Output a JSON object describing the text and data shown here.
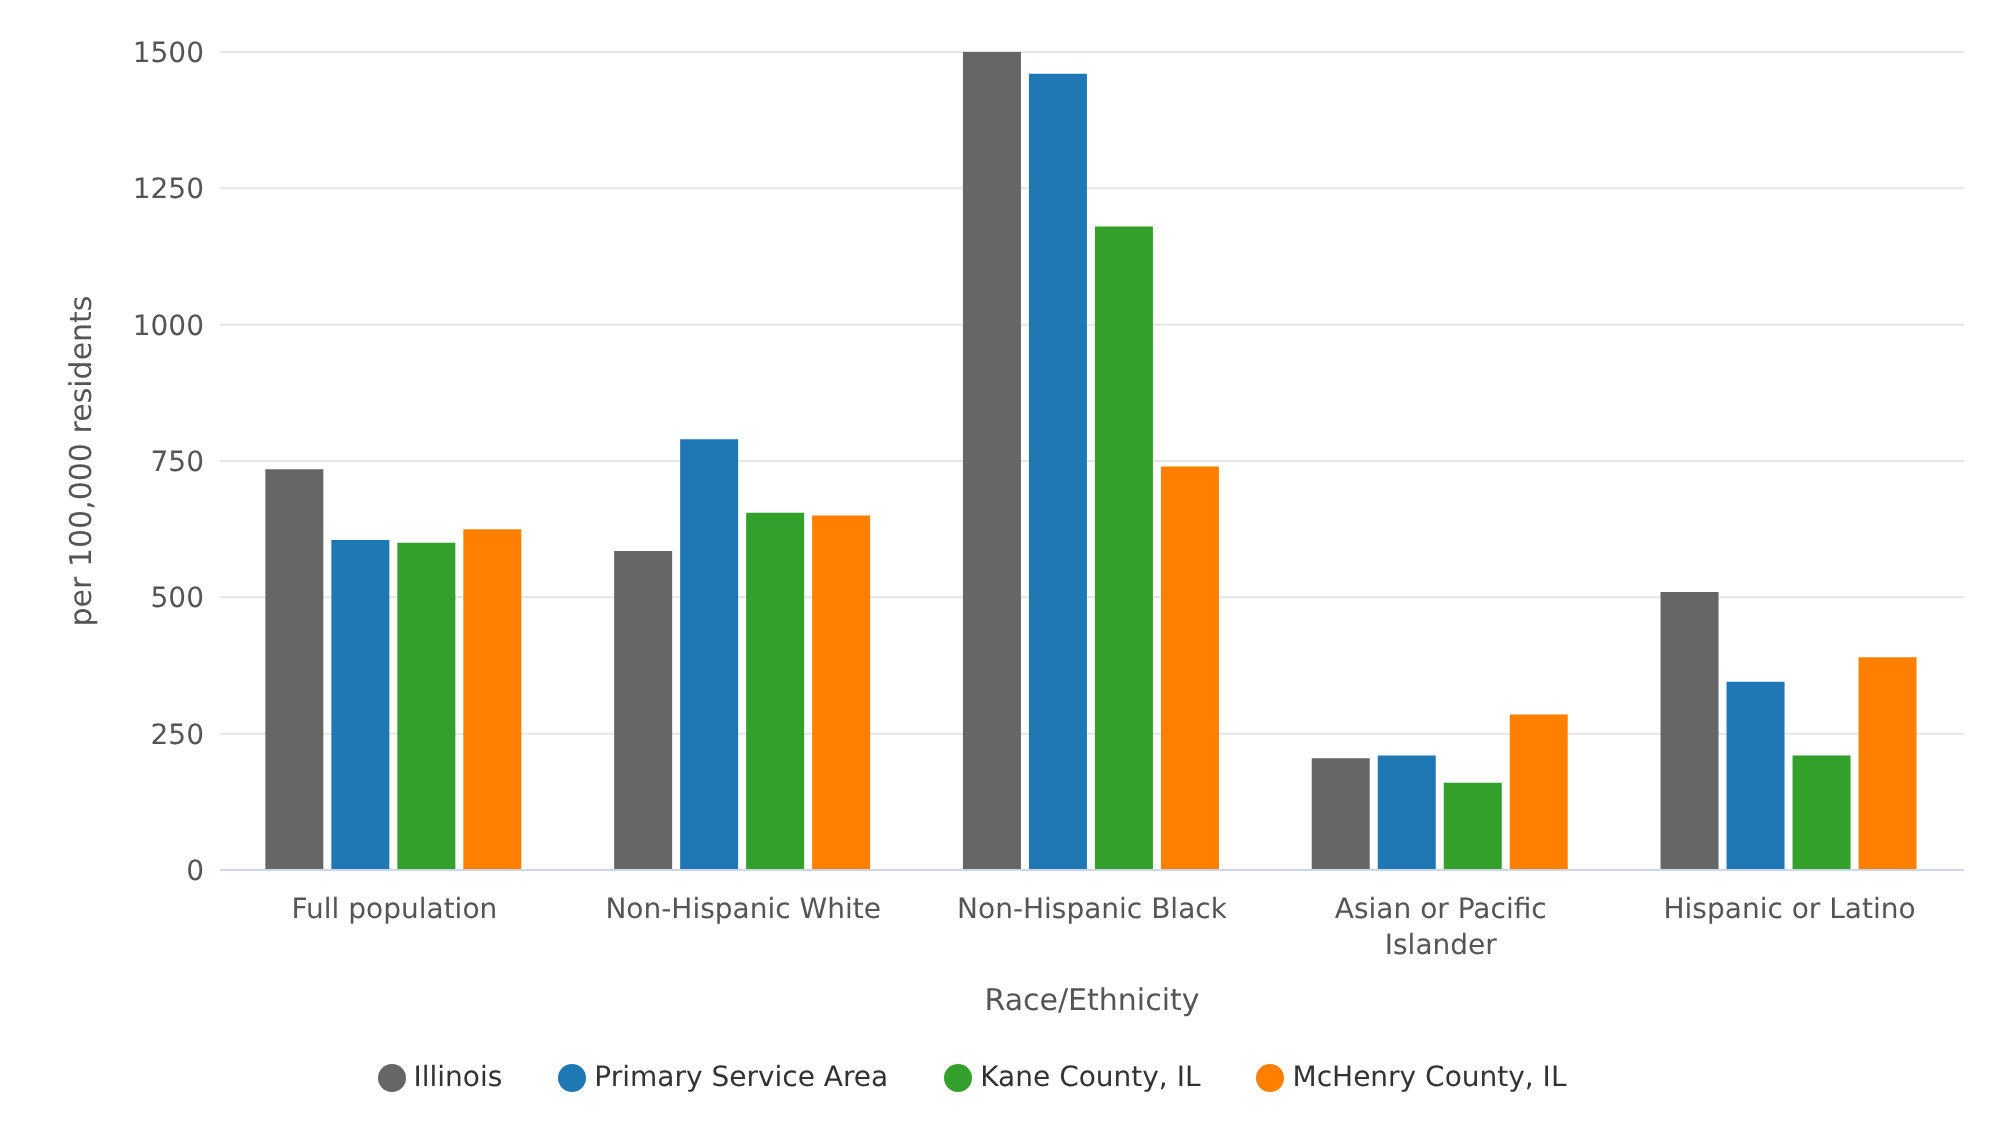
{
  "chart_data": {
    "type": "bar",
    "xlabel": "Race/Ethnicity",
    "ylabel": "per 100,000 residents",
    "categories": [
      "Full population",
      "Non-Hispanic White",
      "Non-Hispanic Black",
      "Asian or Pacific Islander",
      "Hispanic or Latino"
    ],
    "series": [
      {
        "name": "Illinois",
        "color": "#666666",
        "values": [
          735,
          585,
          1500,
          205,
          510
        ]
      },
      {
        "name": "Primary Service Area",
        "color": "#1f77b4",
        "values": [
          605,
          790,
          1460,
          210,
          345
        ]
      },
      {
        "name": "Kane County, IL",
        "color": "#33a02c",
        "values": [
          600,
          655,
          1180,
          160,
          210
        ]
      },
      {
        "name": "McHenry County, IL",
        "color": "#ff7f00",
        "values": [
          625,
          650,
          740,
          285,
          390
        ]
      }
    ],
    "ylim": [
      0,
      1500
    ],
    "yticks": [
      0,
      250,
      500,
      750,
      1000,
      1250,
      1500
    ],
    "grid": "y",
    "legend": "bottom"
  }
}
